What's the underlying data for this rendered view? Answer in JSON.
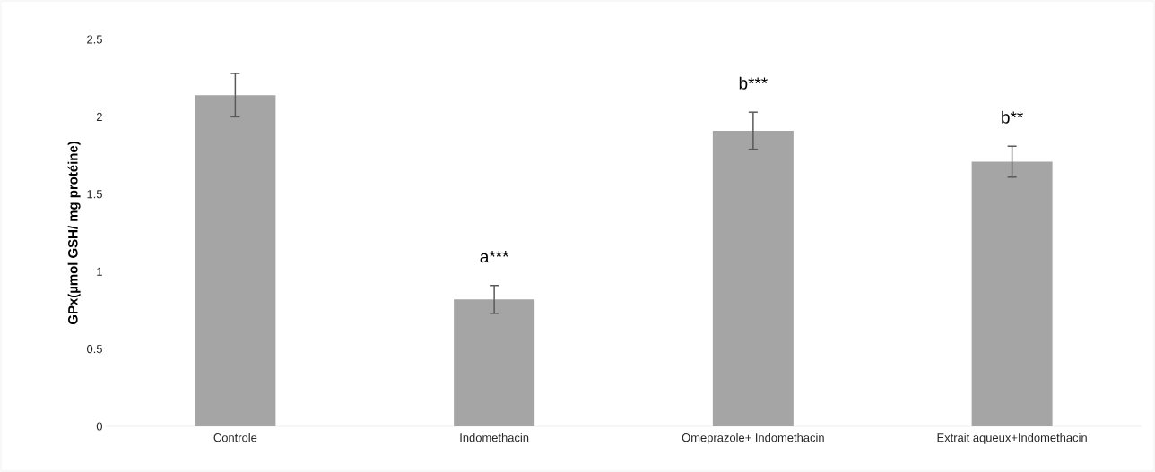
{
  "chart_data": {
    "type": "bar",
    "ylabel": "GPx(µmol GSH/ mg protéine)",
    "categories": [
      "Controle",
      "Indomethacin",
      "Omeprazole+ Indomethacin",
      "Extrait aqueux+Indomethacin"
    ],
    "values": [
      2.14,
      0.82,
      1.91,
      1.71
    ],
    "errors": [
      0.14,
      0.09,
      0.12,
      0.1
    ],
    "color": "#a5a5a5",
    "ylim": [
      0,
      2.5
    ],
    "yticks": [
      0,
      0.5,
      1,
      1.5,
      2,
      2.5
    ],
    "grid": false,
    "annotations": [
      "a***",
      "b***",
      "b**"
    ]
  }
}
